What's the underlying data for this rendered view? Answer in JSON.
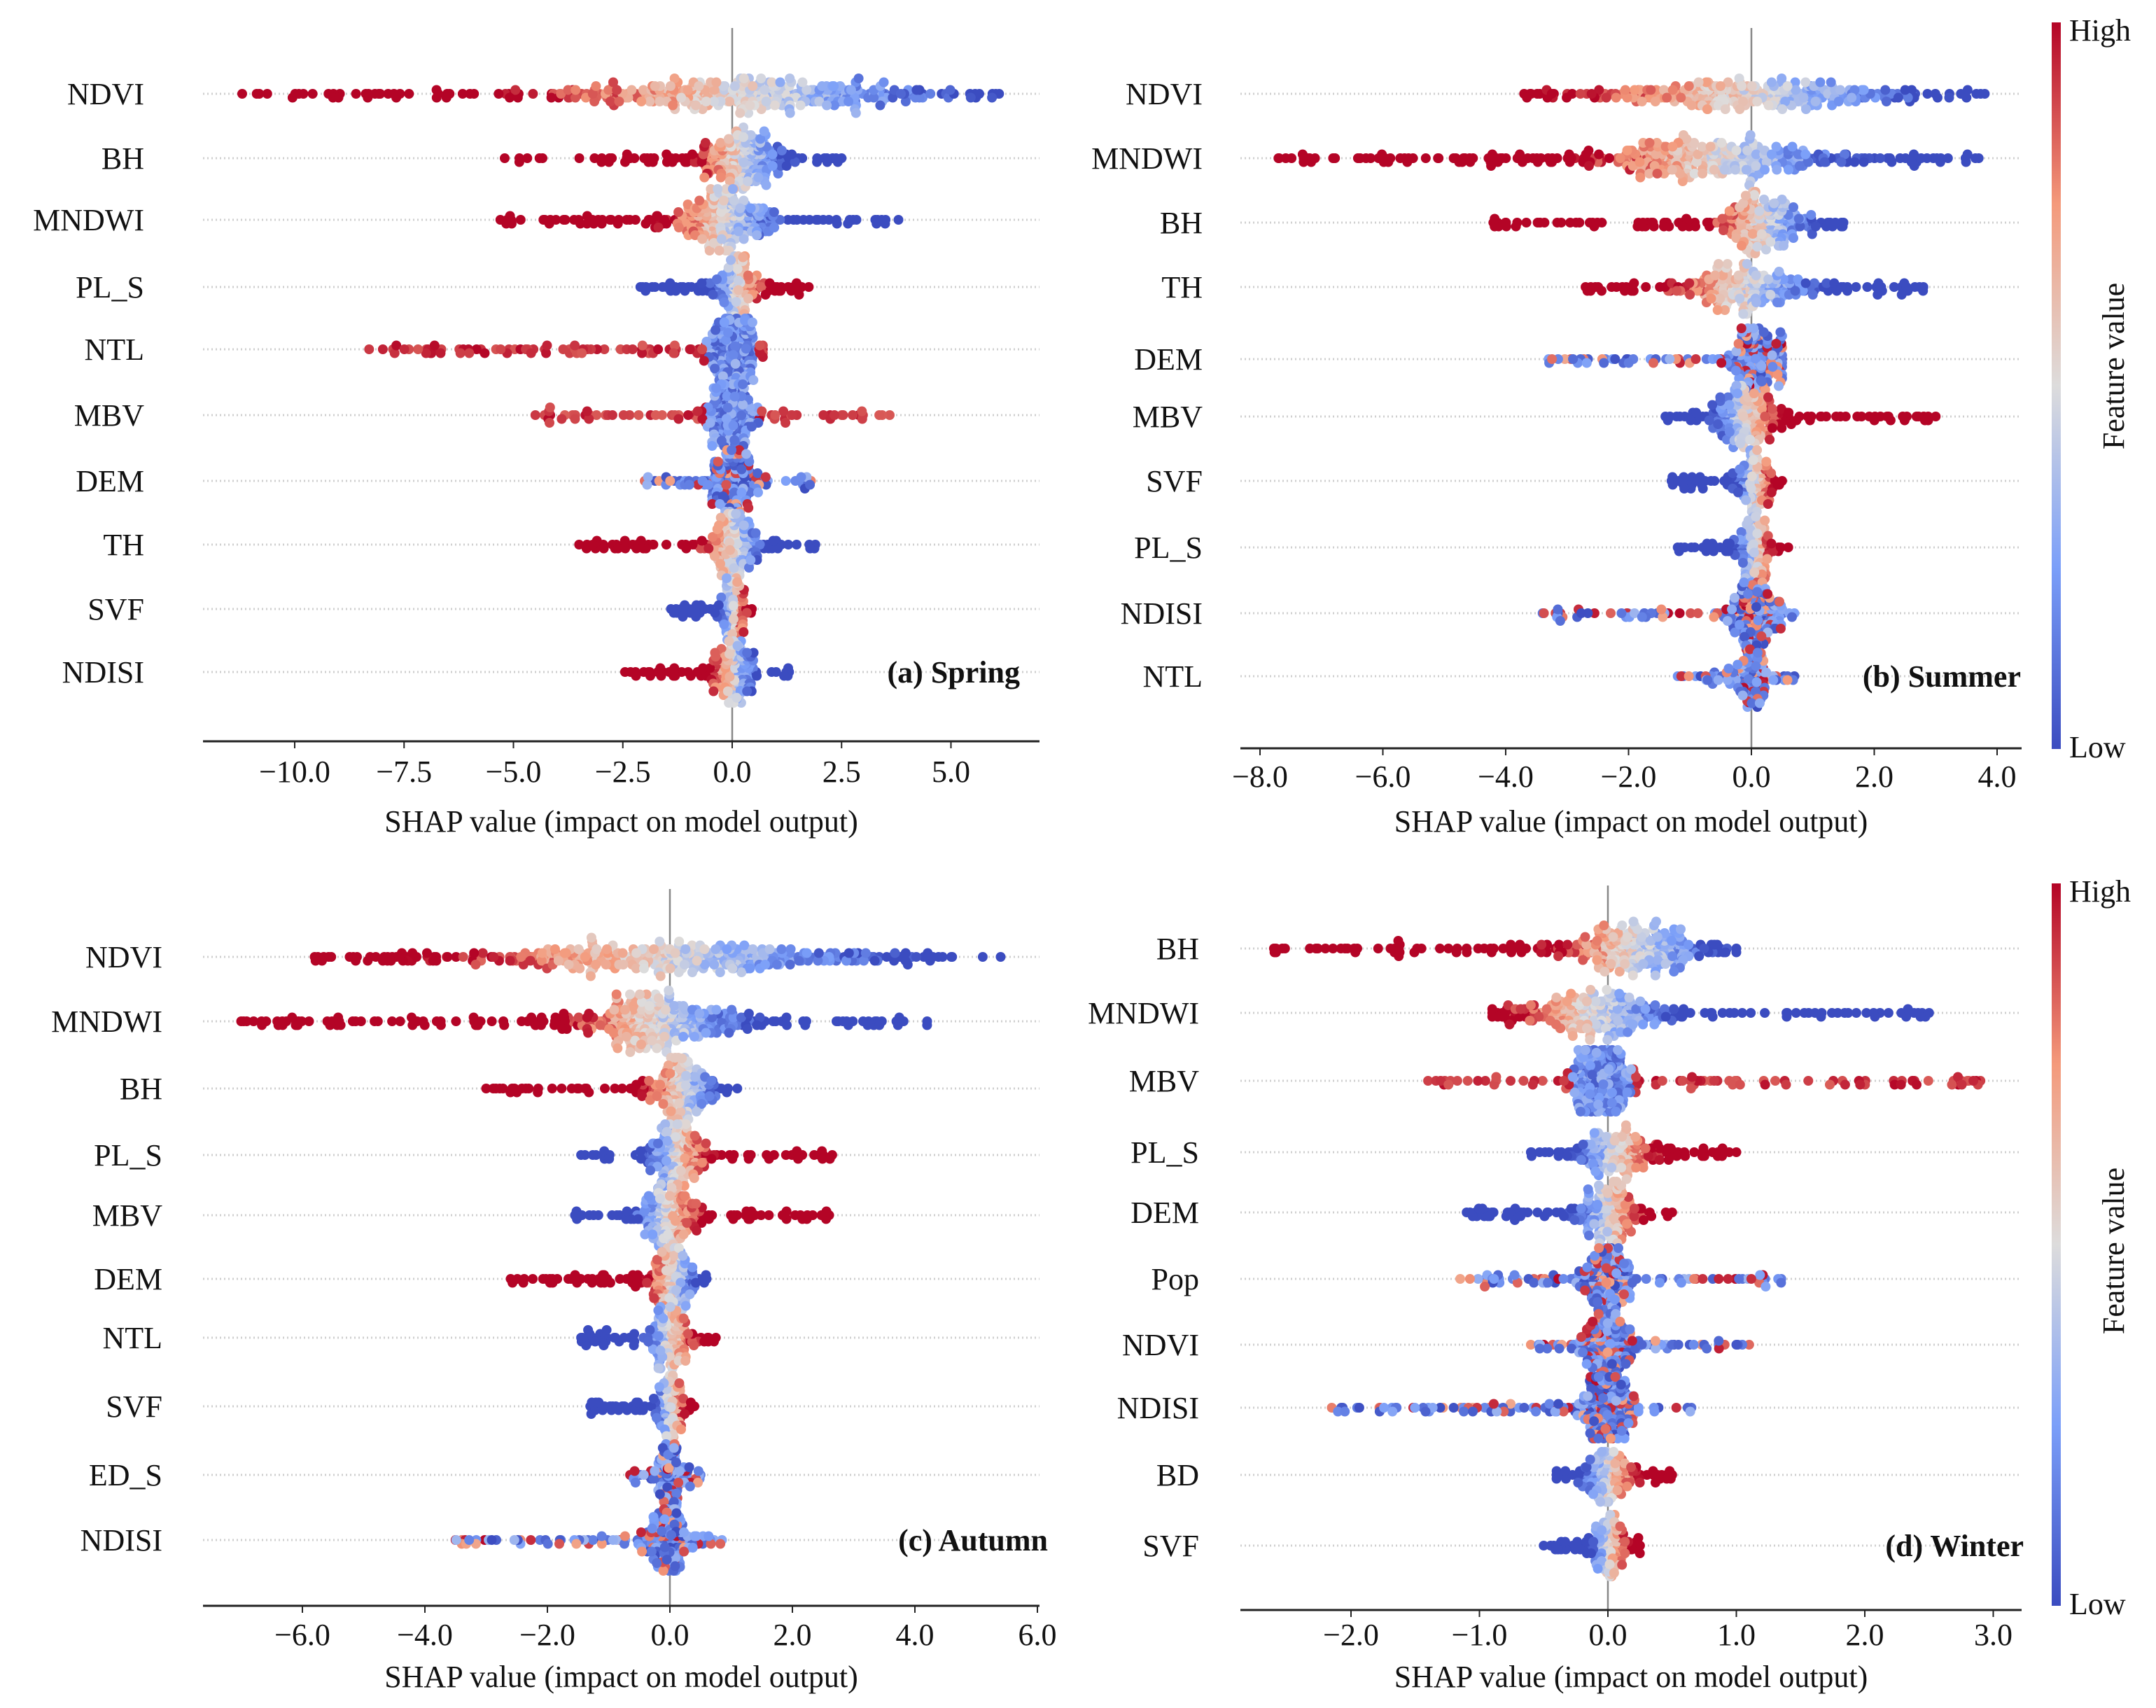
{
  "colorbar": {
    "high_label": "High",
    "low_label": "Low",
    "title": "Feature value",
    "colors": [
      "#3b4cc0",
      "#7b9ff9",
      "#dddcdc",
      "#f49a7b",
      "#b40426"
    ]
  },
  "chart_data": [
    {
      "type": "scatter",
      "subtype": "shap-beeswarm",
      "title": "(a) Spring",
      "xlabel": "SHAP value (impact on model output)",
      "xlim": [
        -12.1,
        7.0
      ],
      "xticks": [
        -10,
        -7.5,
        -5,
        -2.5,
        0,
        2.5,
        5
      ],
      "xtick_labels": [
        "−10.0",
        "−7.5",
        "−5.0",
        "−2.5",
        "0.0",
        "2.5",
        "5.0"
      ],
      "features": [
        {
          "name": "NDVI",
          "min": -11.2,
          "max": 6.1,
          "core": 0.3,
          "spread": 2.2,
          "pattern": "high-negative"
        },
        {
          "name": "BH",
          "min": -5.2,
          "max": 2.5,
          "core": 0.2,
          "spread": 0.5,
          "pattern": "high-negative"
        },
        {
          "name": "MNDWI",
          "min": -5.3,
          "max": 3.8,
          "core": -0.2,
          "spread": 0.6,
          "pattern": "high-negative"
        },
        {
          "name": "PL_S",
          "min": -2.1,
          "max": 1.75,
          "core": 0.1,
          "spread": 0.3,
          "pattern": "high-positive"
        },
        {
          "name": "NTL",
          "min": -8.3,
          "max": 0.7,
          "core": 0.0,
          "spread": 0.3,
          "pattern": "high-tails"
        },
        {
          "name": "MBV",
          "min": -4.5,
          "max": 3.6,
          "core": 0.0,
          "spread": 0.3,
          "pattern": "high-tails"
        },
        {
          "name": "DEM",
          "min": -2.0,
          "max": 1.8,
          "core": 0.0,
          "spread": 0.3,
          "pattern": "mixed"
        },
        {
          "name": "TH",
          "min": -3.5,
          "max": 1.9,
          "core": 0.0,
          "spread": 0.35,
          "pattern": "high-negative"
        },
        {
          "name": "SVF",
          "min": -1.4,
          "max": 0.45,
          "core": 0.0,
          "spread": 0.15,
          "pattern": "high-positive"
        },
        {
          "name": "NDISI",
          "min": -2.45,
          "max": 1.3,
          "core": 0.0,
          "spread": 0.25,
          "pattern": "high-negative"
        }
      ]
    },
    {
      "type": "scatter",
      "subtype": "shap-beeswarm",
      "title": "(b) Summer",
      "xlabel": "SHAP value (impact on model output)",
      "xlim": [
        -8.32,
        4.4
      ],
      "xticks": [
        -8,
        -6,
        -4,
        -2,
        0,
        2,
        4
      ],
      "xtick_labels": [
        "−8.0",
        "−6.0",
        "−4.0",
        "−2.0",
        "0.0",
        "2.0",
        "4.0"
      ],
      "features": [
        {
          "name": "NDVI",
          "min": -3.7,
          "max": 3.8,
          "core": 0.0,
          "spread": 1.3,
          "pattern": "high-negative"
        },
        {
          "name": "MNDWI",
          "min": -7.7,
          "max": 3.7,
          "core": -0.5,
          "spread": 1.0,
          "pattern": "high-negative"
        },
        {
          "name": "BH",
          "min": -4.2,
          "max": 1.5,
          "core": 0.2,
          "spread": 0.4,
          "pattern": "high-negative"
        },
        {
          "name": "TH",
          "min": -2.7,
          "max": 2.8,
          "core": -0.1,
          "spread": 0.6,
          "pattern": "high-negative"
        },
        {
          "name": "DEM",
          "min": -3.3,
          "max": 0.5,
          "core": 0.1,
          "spread": 0.25,
          "pattern": "mixed"
        },
        {
          "name": "MBV",
          "min": -1.4,
          "max": 3.0,
          "core": -0.1,
          "spread": 0.25,
          "pattern": "high-positive"
        },
        {
          "name": "SVF",
          "min": -1.3,
          "max": 0.5,
          "core": 0.05,
          "spread": 0.15,
          "pattern": "high-positive"
        },
        {
          "name": "PL_S",
          "min": -1.2,
          "max": 0.6,
          "core": 0.05,
          "spread": 0.15,
          "pattern": "high-positive"
        },
        {
          "name": "NDISI",
          "min": -3.4,
          "max": 0.7,
          "core": 0.05,
          "spread": 0.2,
          "pattern": "mixed"
        },
        {
          "name": "NTL",
          "min": -1.2,
          "max": 0.7,
          "core": 0.0,
          "spread": 0.15,
          "pattern": "mixed"
        }
      ]
    },
    {
      "type": "scatter",
      "subtype": "shap-beeswarm",
      "title": "(c) Autumn",
      "xlabel": "SHAP value (impact on model output)",
      "xlim": [
        -7.62,
        6.03
      ],
      "xticks": [
        -6,
        -4,
        -2,
        0,
        2,
        4,
        6
      ],
      "xtick_labels": [
        "−6.0",
        "−4.0",
        "−2.0",
        "0.0",
        "2.0",
        "4.0",
        "6.0"
      ],
      "features": [
        {
          "name": "NDVI",
          "min": -5.8,
          "max": 5.4,
          "core": 0.0,
          "spread": 1.6,
          "pattern": "high-negative"
        },
        {
          "name": "MNDWI",
          "min": -7.0,
          "max": 4.2,
          "core": -0.2,
          "spread": 0.7,
          "pattern": "high-negative"
        },
        {
          "name": "BH",
          "min": -3.0,
          "max": 1.1,
          "core": 0.2,
          "spread": 0.3,
          "pattern": "high-negative"
        },
        {
          "name": "PL_S",
          "min": -1.45,
          "max": 2.65,
          "core": 0.1,
          "spread": 0.25,
          "pattern": "high-positive"
        },
        {
          "name": "MBV",
          "min": -1.55,
          "max": 2.6,
          "core": -0.05,
          "spread": 0.25,
          "pattern": "high-positive"
        },
        {
          "name": "DEM",
          "min": -2.6,
          "max": 0.6,
          "core": 0.05,
          "spread": 0.2,
          "pattern": "high-negative"
        },
        {
          "name": "NTL",
          "min": -1.45,
          "max": 0.75,
          "core": 0.0,
          "spread": 0.2,
          "pattern": "high-positive"
        },
        {
          "name": "SVF",
          "min": -1.3,
          "max": 0.4,
          "core": 0.0,
          "spread": 0.12,
          "pattern": "high-positive"
        },
        {
          "name": "ED_S",
          "min": -0.65,
          "max": 0.5,
          "core": 0.0,
          "spread": 0.12,
          "pattern": "mixed"
        },
        {
          "name": "NDISI",
          "min": -3.5,
          "max": 0.85,
          "core": 0.0,
          "spread": 0.2,
          "pattern": "mixed"
        }
      ]
    },
    {
      "type": "scatter",
      "subtype": "shap-beeswarm",
      "title": "(d) Winter",
      "xlabel": "SHAP value (impact on model output)",
      "xlim": [
        -2.86,
        3.22
      ],
      "xticks": [
        -2,
        -1,
        0,
        1,
        2,
        3
      ],
      "xtick_labels": [
        "−2.0",
        "−1.0",
        "0.0",
        "1.0",
        "2.0",
        "3.0"
      ],
      "features": [
        {
          "name": "BH",
          "min": -2.6,
          "max": 1.0,
          "core": 0.2,
          "spread": 0.3,
          "pattern": "high-negative"
        },
        {
          "name": "MNDWI",
          "min": -0.9,
          "max": 2.5,
          "core": -0.1,
          "spread": 0.3,
          "pattern": "high-negative"
        },
        {
          "name": "MBV",
          "min": -1.4,
          "max": 2.9,
          "core": -0.05,
          "spread": 0.12,
          "pattern": "high-tails"
        },
        {
          "name": "PL_S",
          "min": -0.6,
          "max": 1.0,
          "core": 0.05,
          "spread": 0.15,
          "pattern": "high-positive"
        },
        {
          "name": "DEM",
          "min": -1.1,
          "max": 0.5,
          "core": 0.0,
          "spread": 0.12,
          "pattern": "high-positive"
        },
        {
          "name": "Pop",
          "min": -1.15,
          "max": 1.35,
          "core": 0.0,
          "spread": 0.1,
          "pattern": "mixed"
        },
        {
          "name": "NDVI",
          "min": -0.6,
          "max": 1.1,
          "core": 0.0,
          "spread": 0.12,
          "pattern": "mixed"
        },
        {
          "name": "NDISI",
          "min": -2.15,
          "max": 0.65,
          "core": 0.0,
          "spread": 0.12,
          "pattern": "mixed"
        },
        {
          "name": "BD",
          "min": -0.4,
          "max": 0.5,
          "core": 0.0,
          "spread": 0.1,
          "pattern": "high-positive"
        },
        {
          "name": "SVF",
          "min": -0.5,
          "max": 0.25,
          "core": 0.0,
          "spread": 0.07,
          "pattern": "high-positive"
        }
      ]
    }
  ]
}
